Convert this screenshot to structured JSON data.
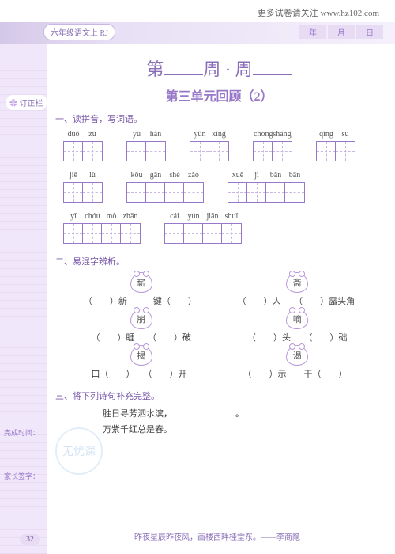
{
  "top_link": "更多试卷请关注 www.hz102.com",
  "header_label": "六年级语文上 RJ",
  "date_labels": {
    "y": "年",
    "m": "月",
    "d": "日"
  },
  "sidebar_label": "订正栏",
  "title_main": {
    "prefix": "第",
    "mid": "周 · 周"
  },
  "title_sub": "第三单元回顾（2）",
  "section1": {
    "title": "一、读拼音，写词语。",
    "groups": [
      {
        "pinyin": [
          "duō",
          "zú"
        ],
        "cells": 2
      },
      {
        "pinyin": [
          "yù",
          "hán"
        ],
        "cells": 2
      },
      {
        "pinyin": [
          "yūn",
          "xīng"
        ],
        "cells": 2
      },
      {
        "pinyin": [
          "chóng",
          "shàng"
        ],
        "cells": 2
      },
      {
        "pinyin": [
          "qīng",
          "sù"
        ],
        "cells": 2
      },
      {
        "pinyin": [
          "jiē",
          "lù"
        ],
        "cells": 2
      },
      {
        "pinyin": [
          "kǒu",
          "gān",
          "shé",
          "zào"
        ],
        "cells": 4
      },
      {
        "pinyin": [
          "xuě",
          "jì",
          "bān",
          "bān"
        ],
        "cells": 4
      },
      {
        "pinyin": [
          "yī",
          "chóu",
          "mò",
          "zhǎn"
        ],
        "cells": 4
      },
      {
        "pinyin": [
          "cái",
          "yún",
          "jiǎn",
          "shuǐ"
        ],
        "cells": 4
      }
    ]
  },
  "section2": {
    "title": "二、易混字辨析。",
    "flower_rows": [
      [
        {
          "char": "崭"
        },
        {
          "char": "斋"
        }
      ],
      [
        {
          "char": "崩"
        },
        {
          "char": "嘀"
        }
      ],
      [
        {
          "char": "揭"
        },
        {
          "char": "渴"
        }
      ]
    ],
    "text_rows": [
      [
        "（　　）新　　　键（　　）",
        "（　　）人　　（　　）露头角"
      ],
      [
        "（　　）睚　　（　　）破",
        "（　　）头　　（　　）础"
      ],
      [
        "口（　　）　　（　　）开",
        "（　　）示　　干（　　）"
      ]
    ]
  },
  "side_notes": {
    "done": "完成时间：",
    "sign": "家长签字："
  },
  "section3": {
    "title": "三、将下列诗句补充完整。",
    "lines": [
      {
        "text": "胜日寻芳泗水滨，",
        "has_blank": true,
        "suffix": "。"
      },
      {
        "text": "万紫千红总是春。",
        "has_blank": false
      }
    ]
  },
  "footer_quote": "昨夜星辰昨夜风，画楼西畔桂堂东。——李商隐",
  "page_num": "32",
  "watermark": "无忧课"
}
